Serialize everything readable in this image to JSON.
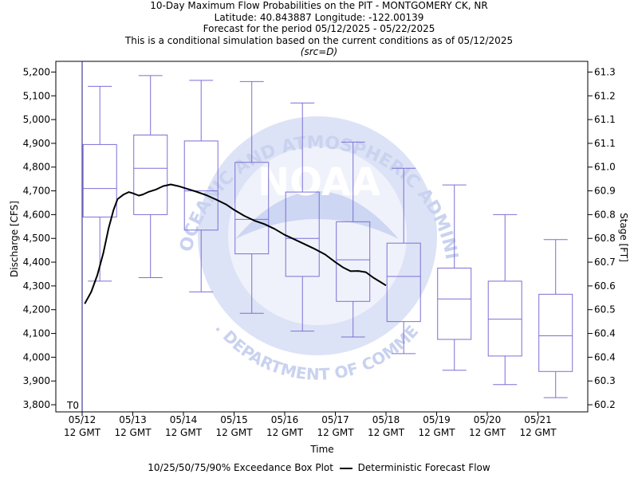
{
  "titles": {
    "line1": "10-Day Maximum Flow Probabilities on the PIT - MONTGOMERY CK, NR",
    "line2": "Latitude: 40.843887 Longitude: -122.00139",
    "line3": "Forecast for the period 05/12/2025 - 05/22/2025",
    "line4": "This is a conditional simulation based on the current conditions as of 05/12/2025",
    "line5": "(src=D)"
  },
  "watermark": {
    "logo_text": "NOAA",
    "ring_top": "NATIONAL OCEANIC AND ATMOSPHERIC ADMINISTRATION",
    "ring_bottom": "U.S. DEPARTMENT OF COMMERCE"
  },
  "legend": {
    "box_label": "10/25/50/75/90% Exceedance Box Plot",
    "line_label": "Deterministic Forecast Flow"
  },
  "colors": {
    "box": "#7b6fd6",
    "line": "#000000",
    "axis": "#000000",
    "watermark": "#dde3f6"
  },
  "chart_data": {
    "type": "box",
    "xlabel": "Time",
    "ylabel": "Discharge [CFS]",
    "y2label": "Stage [FT]",
    "ylim": [
      3770,
      5245
    ],
    "grid": false,
    "t0_label": "T0",
    "x_ticks": [
      {
        "line1": "05/12",
        "line2": "12 GMT"
      },
      {
        "line1": "05/13",
        "line2": "12 GMT"
      },
      {
        "line1": "05/14",
        "line2": "12 GMT"
      },
      {
        "line1": "05/15",
        "line2": "12 GMT"
      },
      {
        "line1": "05/16",
        "line2": "12 GMT"
      },
      {
        "line1": "05/17",
        "line2": "12 GMT"
      },
      {
        "line1": "05/18",
        "line2": "12 GMT"
      },
      {
        "line1": "05/19",
        "line2": "12 GMT"
      },
      {
        "line1": "05/20",
        "line2": "12 GMT"
      },
      {
        "line1": "05/21",
        "line2": "12 GMT"
      }
    ],
    "y_ticks": [
      3800,
      3900,
      4000,
      4100,
      4200,
      4300,
      4400,
      4500,
      4600,
      4700,
      4800,
      4900,
      5000,
      5100,
      5200
    ],
    "y_tick_labels": [
      "3,800",
      "3,900",
      "4,000",
      "4,100",
      "4,200",
      "4,300",
      "4,400",
      "4,500",
      "4,600",
      "4,700",
      "4,800",
      "4,900",
      "5,000",
      "5,100",
      "5,200"
    ],
    "y2_ticks": [
      {
        "label": "60.2",
        "flow": 3800
      },
      {
        "label": "60.3",
        "flow": 3900
      },
      {
        "label": "60.4",
        "flow": 4000
      },
      {
        "label": "60.4",
        "flow": 4100
      },
      {
        "label": "60.5",
        "flow": 4200
      },
      {
        "label": "60.6",
        "flow": 4300
      },
      {
        "label": "60.7",
        "flow": 4400
      },
      {
        "label": "60.8",
        "flow": 4500
      },
      {
        "label": "60.8",
        "flow": 4600
      },
      {
        "label": "60.9",
        "flow": 4700
      },
      {
        "label": "61.0",
        "flow": 4800
      },
      {
        "label": "61.1",
        "flow": 4900
      },
      {
        "label": "61.1",
        "flow": 5000
      },
      {
        "label": "61.2",
        "flow": 5100
      },
      {
        "label": "61.3",
        "flow": 5200
      }
    ],
    "boxes": [
      {
        "day": 0.35,
        "p10": 4320,
        "p25": 4590,
        "p50": 4710,
        "p75": 4895,
        "p90": 5140
      },
      {
        "day": 1.35,
        "p10": 4335,
        "p25": 4600,
        "p50": 4795,
        "p75": 4935,
        "p90": 5185
      },
      {
        "day": 2.35,
        "p10": 4275,
        "p25": 4535,
        "p50": 4700,
        "p75": 4910,
        "p90": 5165
      },
      {
        "day": 3.35,
        "p10": 4185,
        "p25": 4435,
        "p50": 4580,
        "p75": 4820,
        "p90": 5160
      },
      {
        "day": 4.35,
        "p10": 4110,
        "p25": 4340,
        "p50": 4500,
        "p75": 4695,
        "p90": 5070
      },
      {
        "day": 5.35,
        "p10": 4085,
        "p25": 4235,
        "p50": 4410,
        "p75": 4570,
        "p90": 4905
      },
      {
        "day": 6.35,
        "p10": 4015,
        "p25": 4150,
        "p50": 4340,
        "p75": 4480,
        "p90": 4795
      },
      {
        "day": 7.35,
        "p10": 3945,
        "p25": 4075,
        "p50": 4245,
        "p75": 4375,
        "p90": 4725
      },
      {
        "day": 8.35,
        "p10": 3885,
        "p25": 4005,
        "p50": 4160,
        "p75": 4320,
        "p90": 4600
      },
      {
        "day": 9.35,
        "p10": 3830,
        "p25": 3940,
        "p50": 4090,
        "p75": 4265,
        "p90": 4495
      }
    ],
    "deterministic_flow": {
      "name": "Deterministic Forecast Flow",
      "points": [
        [
          0.05,
          4225
        ],
        [
          0.18,
          4275
        ],
        [
          0.3,
          4345
        ],
        [
          0.42,
          4440
        ],
        [
          0.52,
          4540
        ],
        [
          0.62,
          4620
        ],
        [
          0.7,
          4665
        ],
        [
          0.82,
          4685
        ],
        [
          0.92,
          4695
        ],
        [
          1.0,
          4690
        ],
        [
          1.12,
          4680
        ],
        [
          1.2,
          4685
        ],
        [
          1.3,
          4695
        ],
        [
          1.45,
          4705
        ],
        [
          1.6,
          4720
        ],
        [
          1.75,
          4727
        ],
        [
          1.9,
          4720
        ],
        [
          2.05,
          4710
        ],
        [
          2.25,
          4697
        ],
        [
          2.45,
          4682
        ],
        [
          2.65,
          4663
        ],
        [
          2.85,
          4642
        ],
        [
          3.0,
          4620
        ],
        [
          3.2,
          4595
        ],
        [
          3.4,
          4575
        ],
        [
          3.6,
          4560
        ],
        [
          3.8,
          4540
        ],
        [
          4.0,
          4515
        ],
        [
          4.2,
          4495
        ],
        [
          4.4,
          4475
        ],
        [
          4.6,
          4455
        ],
        [
          4.8,
          4432
        ],
        [
          5.0,
          4400
        ],
        [
          5.15,
          4378
        ],
        [
          5.3,
          4362
        ],
        [
          5.45,
          4363
        ],
        [
          5.6,
          4358
        ],
        [
          5.75,
          4335
        ],
        [
          5.9,
          4315
        ],
        [
          6.0,
          4302
        ]
      ]
    }
  }
}
